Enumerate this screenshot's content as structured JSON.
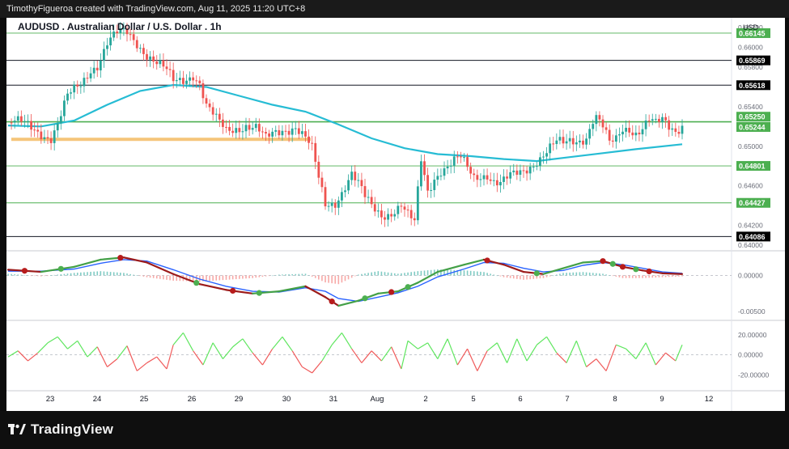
{
  "header": {
    "credit": "TimothyFigueroa created with TradingView.com, Aug 11, 2025 11:20 UTC+8"
  },
  "footer": {
    "brand": "TradingView"
  },
  "chart_data": {
    "type": "candlestick",
    "title": "AUDUSD . Australian Dollar / U.S. Dollar . 1h",
    "currency": "USD",
    "x_ticks": [
      "23",
      "24",
      "25",
      "26",
      "29",
      "30",
      "31",
      "Aug",
      "2",
      "5",
      "6",
      "7",
      "8",
      "9",
      "12"
    ],
    "price_axis": {
      "ylim": [
        0.6395,
        0.663
      ],
      "tick_labels": [
        "0.66200",
        "0.66000",
        "0.65800",
        "0.65400",
        "0.65000",
        "0.64600",
        "0.64200",
        "0.64000"
      ],
      "tick_values": [
        0.662,
        0.66,
        0.658,
        0.654,
        0.65,
        0.646,
        0.642,
        0.64
      ],
      "level_lines": [
        {
          "value": 0.66145,
          "label": "0.66145",
          "style": "green"
        },
        {
          "value": 0.65869,
          "label": "0.65869",
          "style": "black"
        },
        {
          "value": 0.65618,
          "label": "0.65618",
          "style": "black"
        },
        {
          "value": 0.6525,
          "label": "0.65250",
          "style": "green"
        },
        {
          "value": 0.65244,
          "label": "0.65244",
          "style": "green"
        },
        {
          "value": 0.64801,
          "label": "0.64801",
          "style": "green"
        },
        {
          "value": 0.64427,
          "label": "0.64427",
          "style": "green"
        },
        {
          "value": 0.64086,
          "label": "0.64086",
          "style": "black"
        }
      ],
      "support_zone": 0.6507
    },
    "close_path": [
      [
        0,
        0.6524
      ],
      [
        5,
        0.6521
      ],
      [
        10,
        0.6515
      ],
      [
        13,
        0.651
      ],
      [
        15,
        0.6522
      ],
      [
        18,
        0.6548
      ],
      [
        20,
        0.6555
      ],
      [
        22,
        0.6562
      ],
      [
        25,
        0.658
      ],
      [
        27,
        0.6584
      ],
      [
        30,
        0.6604
      ],
      [
        33,
        0.6612
      ],
      [
        36,
        0.6614
      ],
      [
        39,
        0.6606
      ],
      [
        42,
        0.6595
      ],
      [
        45,
        0.6584
      ],
      [
        48,
        0.6574
      ],
      [
        50,
        0.6564
      ],
      [
        53,
        0.6568
      ],
      [
        56,
        0.6575
      ],
      [
        58,
        0.6565
      ],
      [
        60,
        0.654
      ],
      [
        63,
        0.6525
      ],
      [
        66,
        0.6515
      ],
      [
        69,
        0.652
      ],
      [
        72,
        0.6523
      ],
      [
        75,
        0.6518
      ],
      [
        78,
        0.6505
      ],
      [
        81,
        0.6513
      ],
      [
        84,
        0.6519
      ],
      [
        87,
        0.6522
      ],
      [
        90,
        0.6508
      ],
      [
        92,
        0.6495
      ],
      [
        94,
        0.6465
      ],
      [
        96,
        0.644
      ],
      [
        99,
        0.6445
      ],
      [
        102,
        0.6462
      ],
      [
        104,
        0.6472
      ],
      [
        106,
        0.646
      ],
      [
        108,
        0.6446
      ],
      [
        110,
        0.6438
      ],
      [
        113,
        0.6432
      ],
      [
        116,
        0.6435
      ],
      [
        119,
        0.644
      ],
      [
        121,
        0.6428
      ],
      [
        123,
        0.642
      ],
      [
        125,
        0.6485
      ],
      [
        127,
        0.6455
      ],
      [
        129,
        0.647
      ],
      [
        131,
        0.6478
      ],
      [
        133,
        0.648
      ],
      [
        135,
        0.6484
      ],
      [
        137,
        0.6486
      ],
      [
        139,
        0.6476
      ],
      [
        141,
        0.6468
      ],
      [
        143,
        0.6472
      ],
      [
        145,
        0.6474
      ],
      [
        147,
        0.6466
      ],
      [
        149,
        0.6462
      ],
      [
        152,
        0.6467
      ],
      [
        155,
        0.6472
      ],
      [
        157,
        0.6478
      ],
      [
        160,
        0.6488
      ],
      [
        162,
        0.6493
      ],
      [
        164,
        0.6498
      ],
      [
        166,
        0.6502
      ],
      [
        168,
        0.65
      ],
      [
        170,
        0.6504
      ],
      [
        173,
        0.6508
      ],
      [
        175,
        0.6512
      ],
      [
        177,
        0.6528
      ],
      [
        178,
        0.653
      ],
      [
        180,
        0.6518
      ],
      [
        182,
        0.65
      ],
      [
        184,
        0.6505
      ],
      [
        186,
        0.6518
      ],
      [
        188,
        0.652
      ],
      [
        190,
        0.6516
      ],
      [
        192,
        0.652
      ],
      [
        194,
        0.6526
      ],
      [
        196,
        0.652
      ],
      [
        198,
        0.6524
      ],
      [
        200,
        0.6519
      ],
      [
        202,
        0.6517
      ],
      [
        204,
        0.6524
      ]
    ],
    "moving_average": [
      [
        0,
        0.6521
      ],
      [
        10,
        0.652
      ],
      [
        20,
        0.6526
      ],
      [
        30,
        0.6542
      ],
      [
        40,
        0.6556
      ],
      [
        50,
        0.6562
      ],
      [
        60,
        0.656
      ],
      [
        70,
        0.6551
      ],
      [
        80,
        0.6542
      ],
      [
        90,
        0.6535
      ],
      [
        100,
        0.6522
      ],
      [
        110,
        0.6508
      ],
      [
        120,
        0.6498
      ],
      [
        130,
        0.6492
      ],
      [
        140,
        0.649
      ],
      [
        150,
        0.6487
      ],
      [
        160,
        0.6485
      ],
      [
        170,
        0.6489
      ],
      [
        180,
        0.6493
      ],
      [
        190,
        0.6497
      ],
      [
        204,
        0.6502
      ]
    ],
    "macd_axis": {
      "ylim": [
        -0.006,
        0.0032
      ],
      "tick_labels": [
        "0.00000",
        "-0.00500"
      ],
      "tick_values": [
        0.0,
        -0.005
      ]
    },
    "macd": [
      [
        0,
        0.0008
      ],
      [
        10,
        0.0005
      ],
      [
        20,
        0.0012
      ],
      [
        28,
        0.0022
      ],
      [
        35,
        0.0025
      ],
      [
        42,
        0.0018
      ],
      [
        50,
        0.0002
      ],
      [
        58,
        -0.0012
      ],
      [
        66,
        -0.002
      ],
      [
        74,
        -0.0025
      ],
      [
        82,
        -0.0022
      ],
      [
        90,
        -0.0015
      ],
      [
        96,
        -0.003
      ],
      [
        100,
        -0.0042
      ],
      [
        106,
        -0.0035
      ],
      [
        112,
        -0.0025
      ],
      [
        118,
        -0.0022
      ],
      [
        124,
        -0.001
      ],
      [
        130,
        0.0005
      ],
      [
        138,
        0.0015
      ],
      [
        144,
        0.0022
      ],
      [
        150,
        0.0015
      ],
      [
        156,
        0.0005
      ],
      [
        162,
        0.0002
      ],
      [
        168,
        0.001
      ],
      [
        174,
        0.0018
      ],
      [
        180,
        0.002
      ],
      [
        186,
        0.0012
      ],
      [
        192,
        0.0007
      ],
      [
        198,
        0.0003
      ],
      [
        204,
        0.0002
      ]
    ],
    "macd_signal": [
      [
        0,
        0.0006
      ],
      [
        10,
        0.0006
      ],
      [
        20,
        0.0009
      ],
      [
        28,
        0.0017
      ],
      [
        35,
        0.0022
      ],
      [
        42,
        0.002
      ],
      [
        50,
        0.0008
      ],
      [
        58,
        -0.0005
      ],
      [
        66,
        -0.0015
      ],
      [
        74,
        -0.0022
      ],
      [
        82,
        -0.0023
      ],
      [
        90,
        -0.0017
      ],
      [
        96,
        -0.0022
      ],
      [
        100,
        -0.0032
      ],
      [
        106,
        -0.0036
      ],
      [
        112,
        -0.003
      ],
      [
        118,
        -0.0024
      ],
      [
        124,
        -0.0015
      ],
      [
        130,
        -0.0002
      ],
      [
        138,
        0.0009
      ],
      [
        144,
        0.0018
      ],
      [
        150,
        0.0017
      ],
      [
        156,
        0.001
      ],
      [
        162,
        0.0005
      ],
      [
        168,
        0.0007
      ],
      [
        174,
        0.0014
      ],
      [
        180,
        0.0018
      ],
      [
        186,
        0.0015
      ],
      [
        192,
        0.001
      ],
      [
        198,
        0.0005
      ],
      [
        204,
        0.0003
      ]
    ],
    "macd_cross_green": [
      16,
      57,
      76,
      108,
      121,
      160,
      183,
      190
    ],
    "macd_cross_red": [
      5,
      34,
      68,
      98,
      116,
      145,
      180,
      186,
      194
    ],
    "rsi_axis": {
      "ylim": [
        -35,
        32
      ],
      "tick_labels": [
        "20.00000",
        "0.00000",
        "-20.00000"
      ],
      "tick_values": [
        20,
        0,
        -20
      ]
    },
    "rsi": [
      [
        0,
        -2
      ],
      [
        3,
        4
      ],
      [
        6,
        -6
      ],
      [
        9,
        2
      ],
      [
        12,
        12
      ],
      [
        15,
        18
      ],
      [
        18,
        6
      ],
      [
        21,
        14
      ],
      [
        24,
        -2
      ],
      [
        27,
        8
      ],
      [
        30,
        -12
      ],
      [
        33,
        -4
      ],
      [
        36,
        9
      ],
      [
        39,
        -16
      ],
      [
        42,
        -8
      ],
      [
        45,
        -2
      ],
      [
        48,
        -14
      ],
      [
        50,
        10
      ],
      [
        53,
        22
      ],
      [
        56,
        4
      ],
      [
        59,
        -10
      ],
      [
        62,
        12
      ],
      [
        65,
        -4
      ],
      [
        68,
        8
      ],
      [
        71,
        16
      ],
      [
        74,
        2
      ],
      [
        77,
        -10
      ],
      [
        80,
        6
      ],
      [
        83,
        18
      ],
      [
        86,
        4
      ],
      [
        89,
        -12
      ],
      [
        92,
        -18
      ],
      [
        95,
        -6
      ],
      [
        98,
        10
      ],
      [
        101,
        22
      ],
      [
        104,
        6
      ],
      [
        107,
        -8
      ],
      [
        110,
        4
      ],
      [
        113,
        -6
      ],
      [
        116,
        8
      ],
      [
        119,
        -14
      ],
      [
        121,
        14
      ],
      [
        124,
        6
      ],
      [
        127,
        12
      ],
      [
        130,
        -4
      ],
      [
        133,
        16
      ],
      [
        136,
        -10
      ],
      [
        139,
        6
      ],
      [
        142,
        -16
      ],
      [
        145,
        4
      ],
      [
        148,
        12
      ],
      [
        151,
        -8
      ],
      [
        154,
        16
      ],
      [
        157,
        -6
      ],
      [
        160,
        10
      ],
      [
        163,
        18
      ],
      [
        166,
        2
      ],
      [
        169,
        -8
      ],
      [
        172,
        14
      ],
      [
        175,
        -12
      ],
      [
        178,
        -4
      ],
      [
        181,
        -16
      ],
      [
        184,
        10
      ],
      [
        187,
        6
      ],
      [
        190,
        -4
      ],
      [
        193,
        12
      ],
      [
        196,
        -10
      ],
      [
        199,
        2
      ],
      [
        202,
        -6
      ],
      [
        204,
        10
      ]
    ]
  }
}
